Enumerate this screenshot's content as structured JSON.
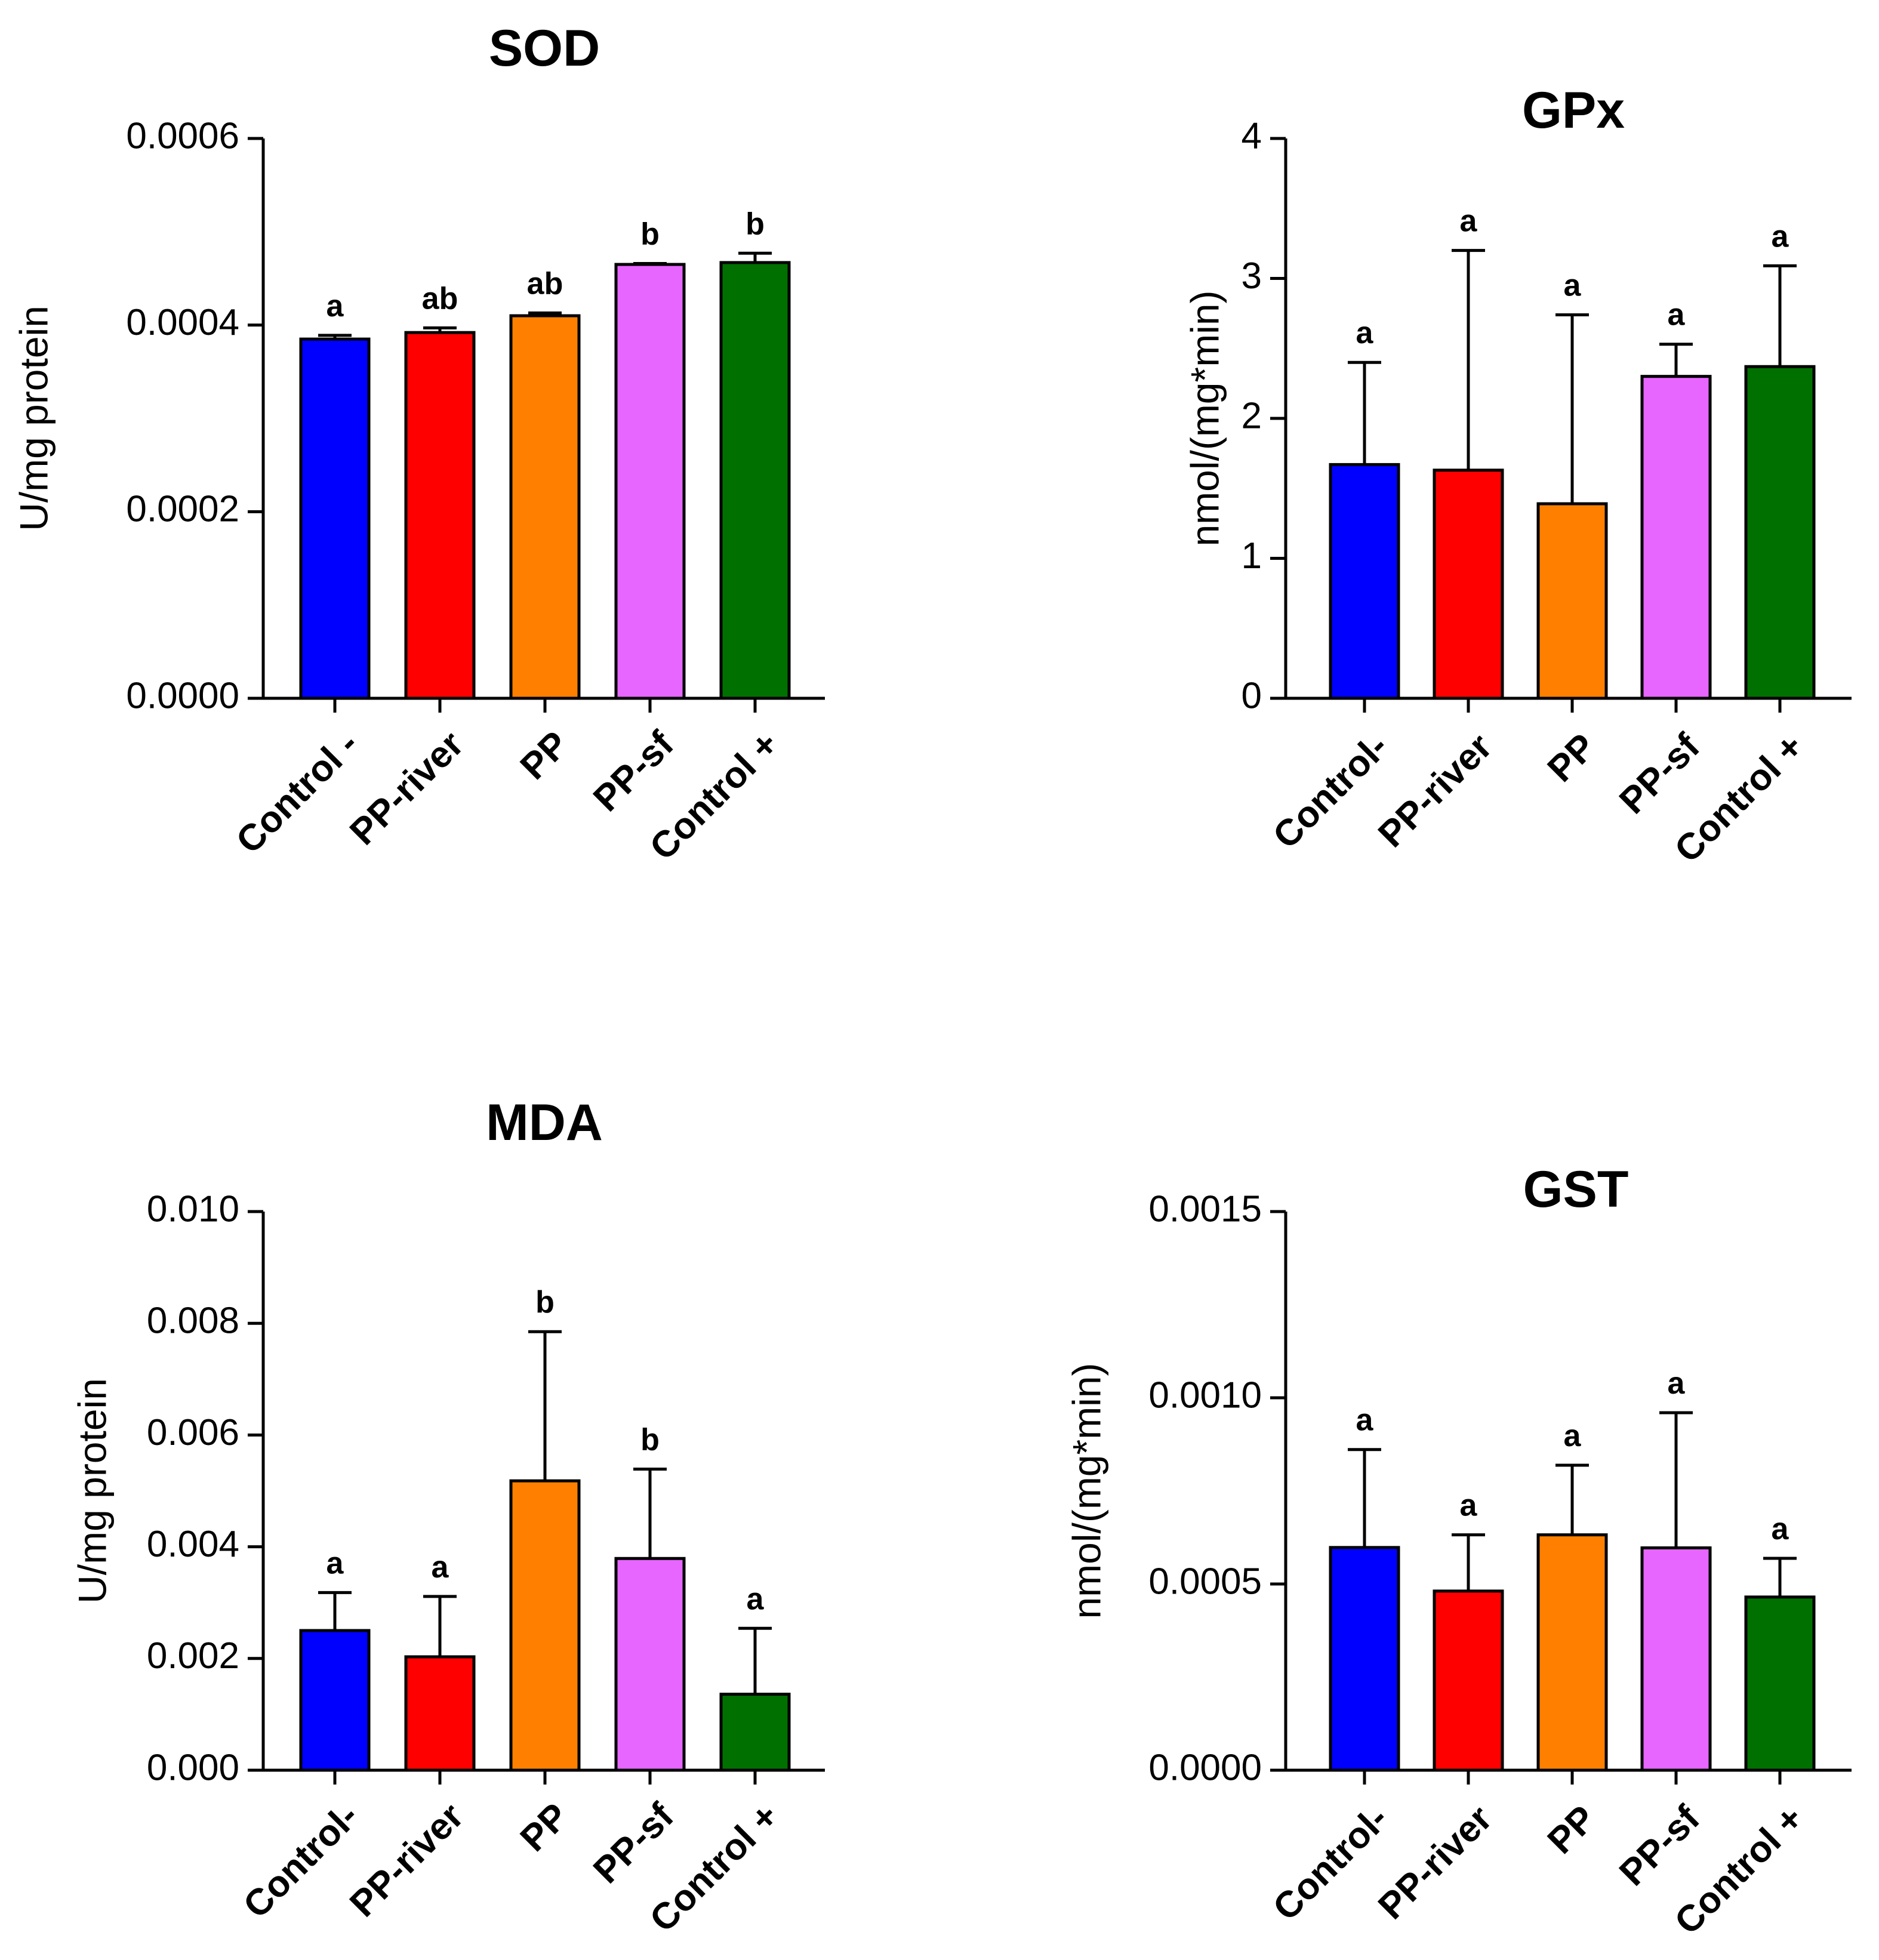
{
  "chart_data": [
    {
      "type": "bar",
      "title": "SOD",
      "ylabel": "U/mg protein",
      "xlabel": "",
      "ylim": [
        0,
        0.0006
      ],
      "yticks": [
        "0.0000",
        "0.0002",
        "0.0004",
        "0.0006"
      ],
      "categories": [
        "Control -",
        "PP-river",
        "PP",
        "PP-sf",
        "Control +"
      ],
      "values": [
        0.000385,
        0.000392,
        0.00041,
        0.000465,
        0.000467
      ],
      "errors": [
        4e-06,
        5e-06,
        3e-06,
        1e-06,
        1e-05
      ],
      "significance": [
        "a",
        "ab",
        "ab",
        "b",
        "b"
      ],
      "colors": [
        "#0000ff",
        "#ff0000",
        "#ff8000",
        "#e666ff",
        "#007000"
      ],
      "grid": false
    },
    {
      "type": "bar",
      "title": "GPx",
      "ylabel": "nmol/(mg*min)",
      "xlabel": "",
      "ylim": [
        0,
        4
      ],
      "yticks": [
        "0",
        "1",
        "2",
        "3",
        "4"
      ],
      "categories": [
        "Control-",
        "PP-river",
        "PP",
        "PP-sf",
        "Control +"
      ],
      "values": [
        1.67,
        1.63,
        1.39,
        2.3,
        2.37
      ],
      "errors": [
        0.73,
        1.57,
        1.35,
        0.23,
        0.72
      ],
      "significance": [
        "a",
        "a",
        "a",
        "a",
        "a"
      ],
      "colors": [
        "#0000ff",
        "#ff0000",
        "#ff8000",
        "#e666ff",
        "#007000"
      ],
      "grid": false
    },
    {
      "type": "bar",
      "title": "MDA",
      "ylabel": "U/mg protein",
      "xlabel": "",
      "ylim": [
        0,
        0.01
      ],
      "yticks": [
        "0.000",
        "0.002",
        "0.004",
        "0.006",
        "0.008",
        "0.010"
      ],
      "categories": [
        "Control-",
        "PP-river",
        "PP",
        "PP-sf",
        "Control +"
      ],
      "values": [
        0.0025,
        0.00203,
        0.00518,
        0.00379,
        0.00136
      ],
      "errors": [
        0.00068,
        0.00108,
        0.00267,
        0.0016,
        0.00118
      ],
      "significance": [
        "a",
        "a",
        "b",
        "b",
        "a"
      ],
      "colors": [
        "#0000ff",
        "#ff0000",
        "#ff8000",
        "#e666ff",
        "#007000"
      ],
      "grid": false
    },
    {
      "type": "bar",
      "title": "GST",
      "ylabel": "nmol/(mg*min)",
      "xlabel": "",
      "ylim": [
        0,
        0.0015
      ],
      "yticks": [
        "0.0000",
        "0.0005",
        "0.0010",
        "0.0015"
      ],
      "categories": [
        "Control-",
        "PP-river",
        "PP",
        "PP-sf",
        "Control +"
      ],
      "values": [
        0.000598,
        0.000481,
        0.000632,
        0.000597,
        0.000465
      ],
      "errors": [
        0.000263,
        0.000151,
        0.000187,
        0.000363,
        0.000104
      ],
      "significance": [
        "a",
        "a",
        "a",
        "a",
        "a"
      ],
      "colors": [
        "#0000ff",
        "#ff0000",
        "#ff8000",
        "#e666ff",
        "#007000"
      ],
      "grid": false
    }
  ]
}
